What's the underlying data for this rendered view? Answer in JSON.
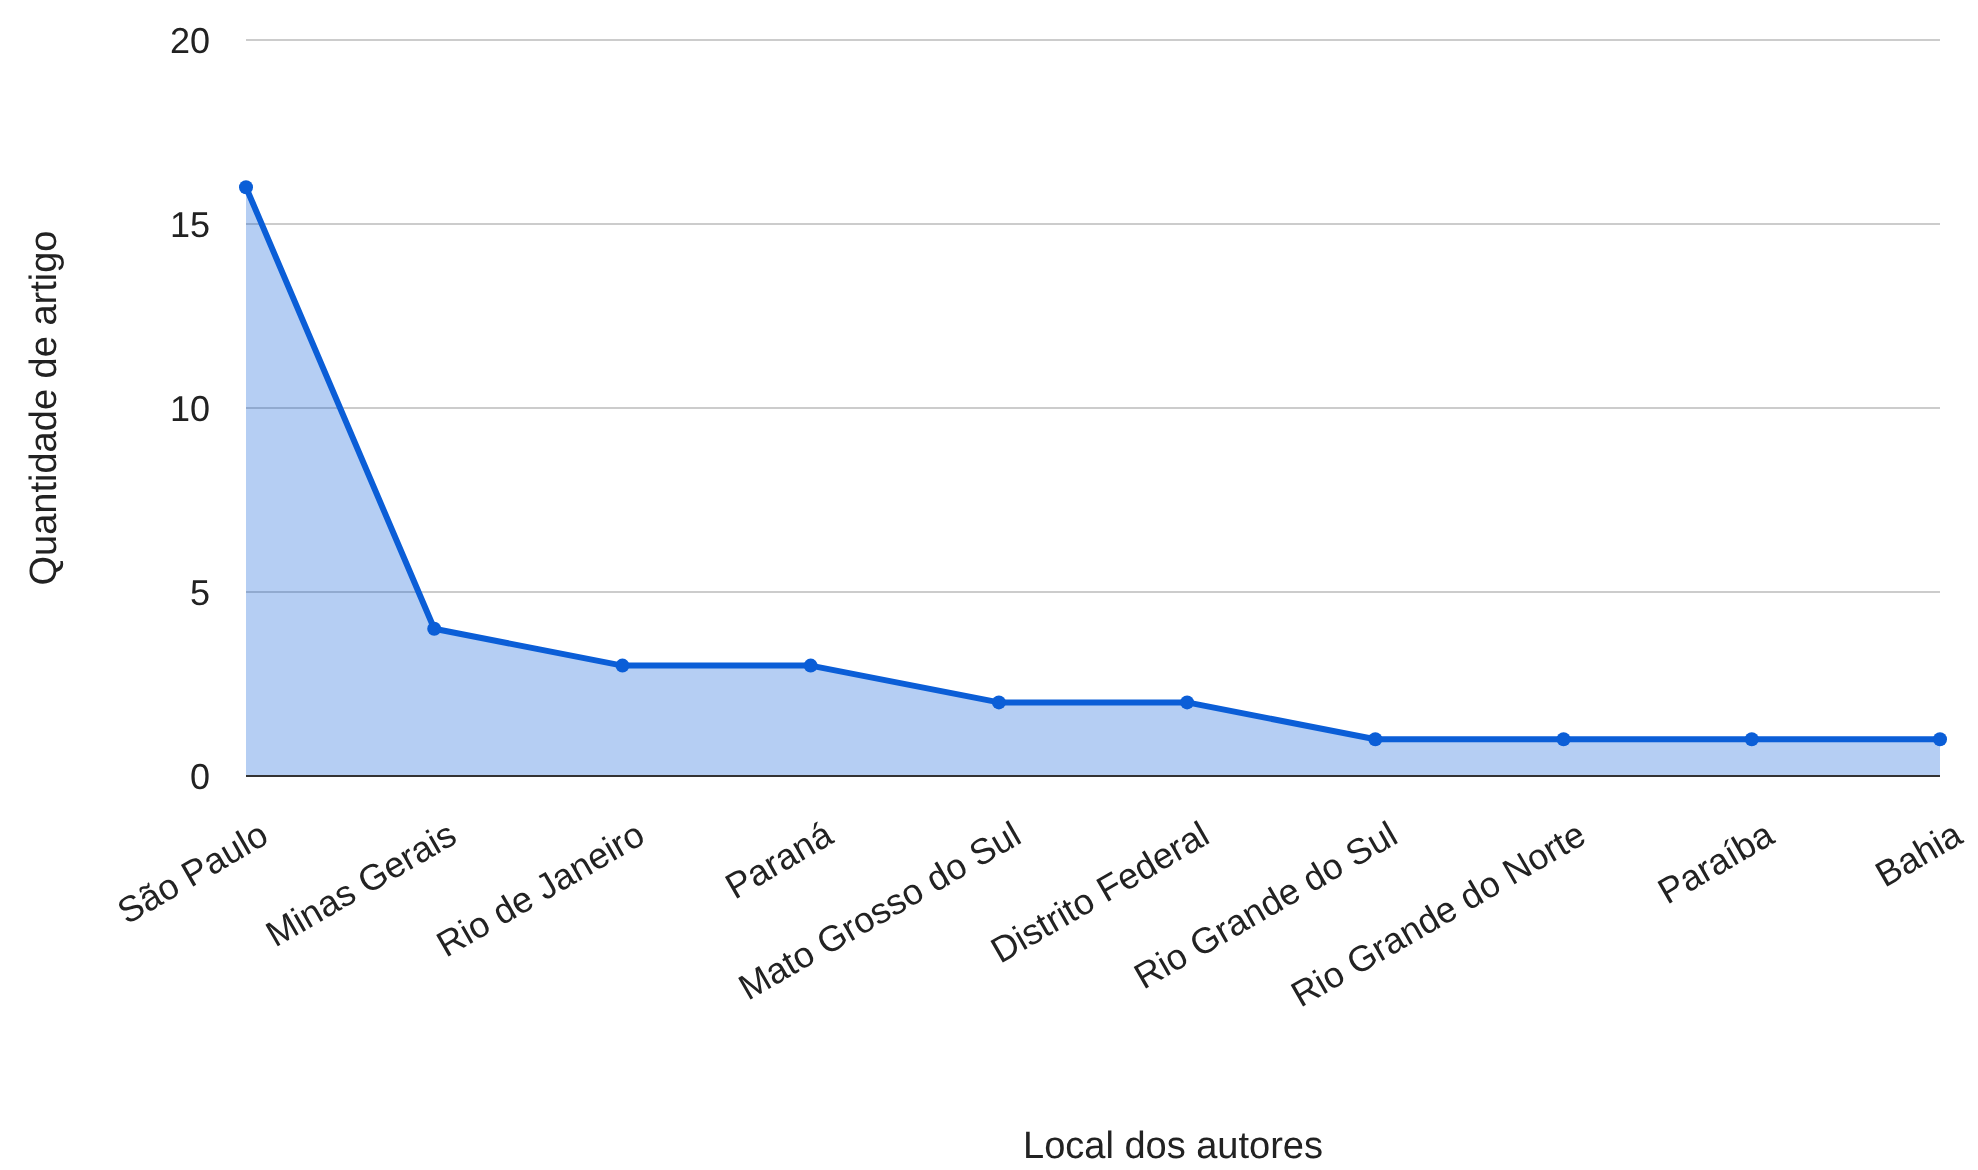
{
  "chart_data": {
    "type": "area",
    "xlabel": "Local dos autores",
    "ylabel": "Quantidade de artigo",
    "categories": [
      "São Paulo",
      "Minas Gerais",
      "Rio de Janeiro",
      "Paraná",
      "Mato Grosso do Sul",
      "Distrito Federal",
      "Rio Grande do Sul",
      "Rio Grande do Norte",
      "Paraíba",
      "Bahia"
    ],
    "series": [
      {
        "color": "#0b5ed7",
        "values": [
          16,
          4,
          3,
          3,
          2,
          2,
          1,
          1,
          1,
          1
        ]
      }
    ],
    "ylim": [
      0,
      20
    ],
    "yticks": [
      0,
      5,
      10,
      15,
      20
    ],
    "grid": "y",
    "marker": "circle",
    "line_style": "solid"
  }
}
